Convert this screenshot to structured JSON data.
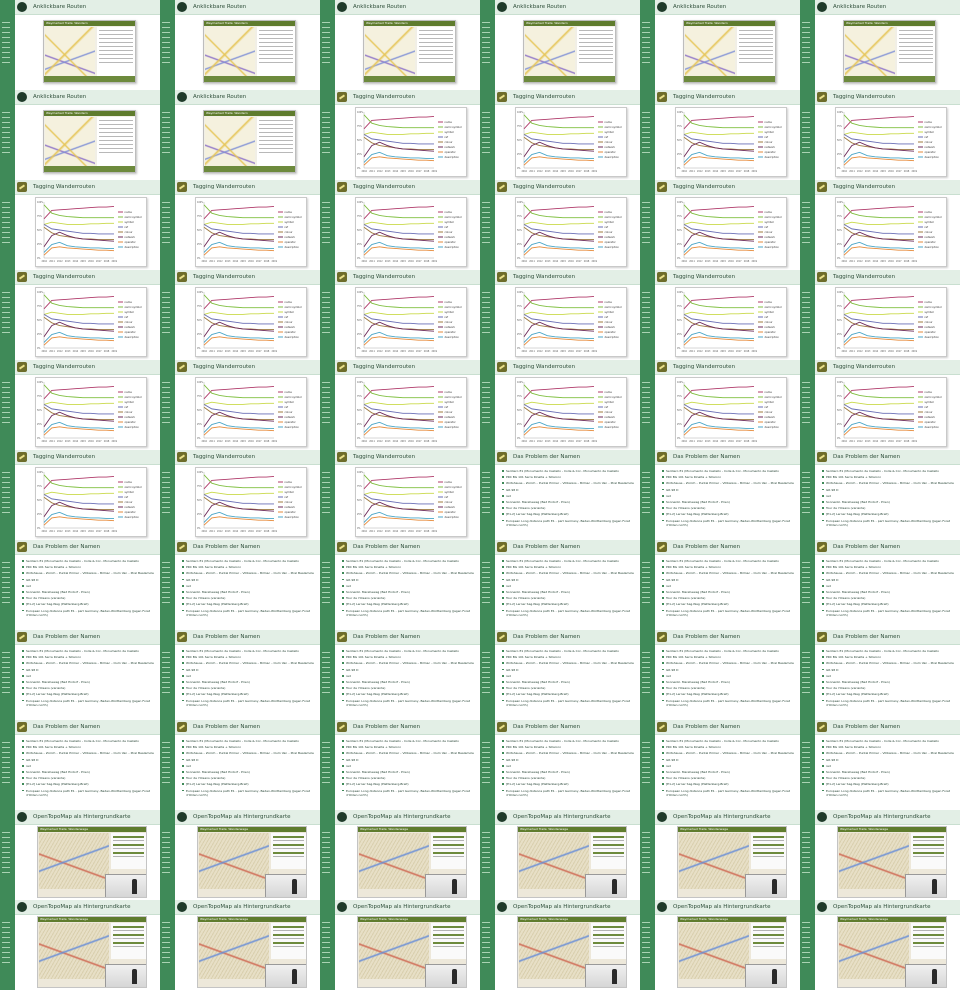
{
  "titles": {
    "routes": "Anklickbare Routen",
    "tagging": "Tagging Wanderrouten",
    "names": "Das Problem der Namen",
    "topo": "OpenTopoMap als Hintergrundkarte"
  },
  "map_header": "Waymarked Trails: Wandern",
  "topo_header": "Waymarked Trails: Wanderwege",
  "slide_layout": [
    "routes",
    "routes",
    "routes",
    "routes",
    "routes",
    "routes",
    "routes",
    "routes",
    "tagging",
    "tagging",
    "tagging",
    "tagging",
    "tagging",
    "tagging",
    "tagging",
    "tagging",
    "tagging",
    "tagging",
    "tagging",
    "tagging",
    "tagging",
    "tagging",
    "tagging",
    "tagging",
    "tagging",
    "tagging",
    "tagging",
    "tagging",
    "tagging",
    "tagging",
    "tagging",
    "tagging",
    "tagging",
    "names",
    "names",
    "names",
    "names",
    "names",
    "names",
    "names",
    "names",
    "names",
    "names",
    "names",
    "names",
    "names",
    "names",
    "names",
    "names",
    "names",
    "names",
    "names",
    "names",
    "names",
    "topo",
    "topo",
    "topo",
    "topo",
    "topo",
    "topo",
    "topo",
    "topo",
    "topo",
    "topo",
    "topo",
    "topo"
  ],
  "name_bullets": [
    "Sentiero E1 (Monumento de Castello - Colle & Col - Monumento de Castello",
    "PRC BG 101 Serra Rinalta + Sillaroni",
    "Wirtshauss – Zürich – Puntal Primer – Villbaixos – Bilmac – Oum Van – Pirel Bealamole",
    "GR 98 D",
    "red",
    "Sonnenbl. Mareheweg (Bad Endorf - Prien)",
    "Tour de l'Oisans (variante)",
    "[E1-2] Lerner Sag-Weg (Plettenberg-Breit)",
    "European Long distance path E1 - part Germany, Baden-Württemberg (Jagen Foret d'Olden north)"
  ],
  "chart_data": {
    "type": "line",
    "x": [
      2010,
      2011,
      2012,
      2013,
      2014,
      2015,
      2016,
      2017,
      2018,
      2019
    ],
    "ylim": [
      0,
      100
    ],
    "series": [
      {
        "name": "name",
        "color": "#b03a6a",
        "values": [
          70,
          85,
          86,
          87,
          88,
          89,
          90,
          91,
          91,
          92
        ]
      },
      {
        "name": "osmc:symbol",
        "color": "#7fbf3f",
        "values": [
          95,
          80,
          76,
          74,
          73,
          72,
          72,
          72,
          72,
          72
        ]
      },
      {
        "name": "symbol",
        "color": "#c9d94a",
        "values": [
          60,
          64,
          62,
          60,
          60,
          60,
          61,
          61,
          62,
          62
        ]
      },
      {
        "name": "ref",
        "color": "#6a6fb6",
        "values": [
          60,
          52,
          50,
          48,
          46,
          44,
          44,
          43,
          43,
          43
        ]
      },
      {
        "name": "colour",
        "color": "#9f7b3e",
        "values": [
          55,
          45,
          40,
          38,
          36,
          34,
          34,
          33,
          33,
          33
        ]
      },
      {
        "name": "network",
        "color": "#6d2a5a",
        "values": [
          20,
          40,
          46,
          40,
          36,
          34,
          33,
          32,
          31,
          30
        ]
      },
      {
        "name": "operator",
        "color": "#e68a3a",
        "values": [
          5,
          18,
          20,
          18,
          17,
          16,
          15,
          14,
          14,
          13
        ]
      },
      {
        "name": "description",
        "color": "#4aa6c8",
        "values": [
          10,
          24,
          28,
          22,
          20,
          19,
          18,
          18,
          17,
          17
        ]
      }
    ]
  }
}
